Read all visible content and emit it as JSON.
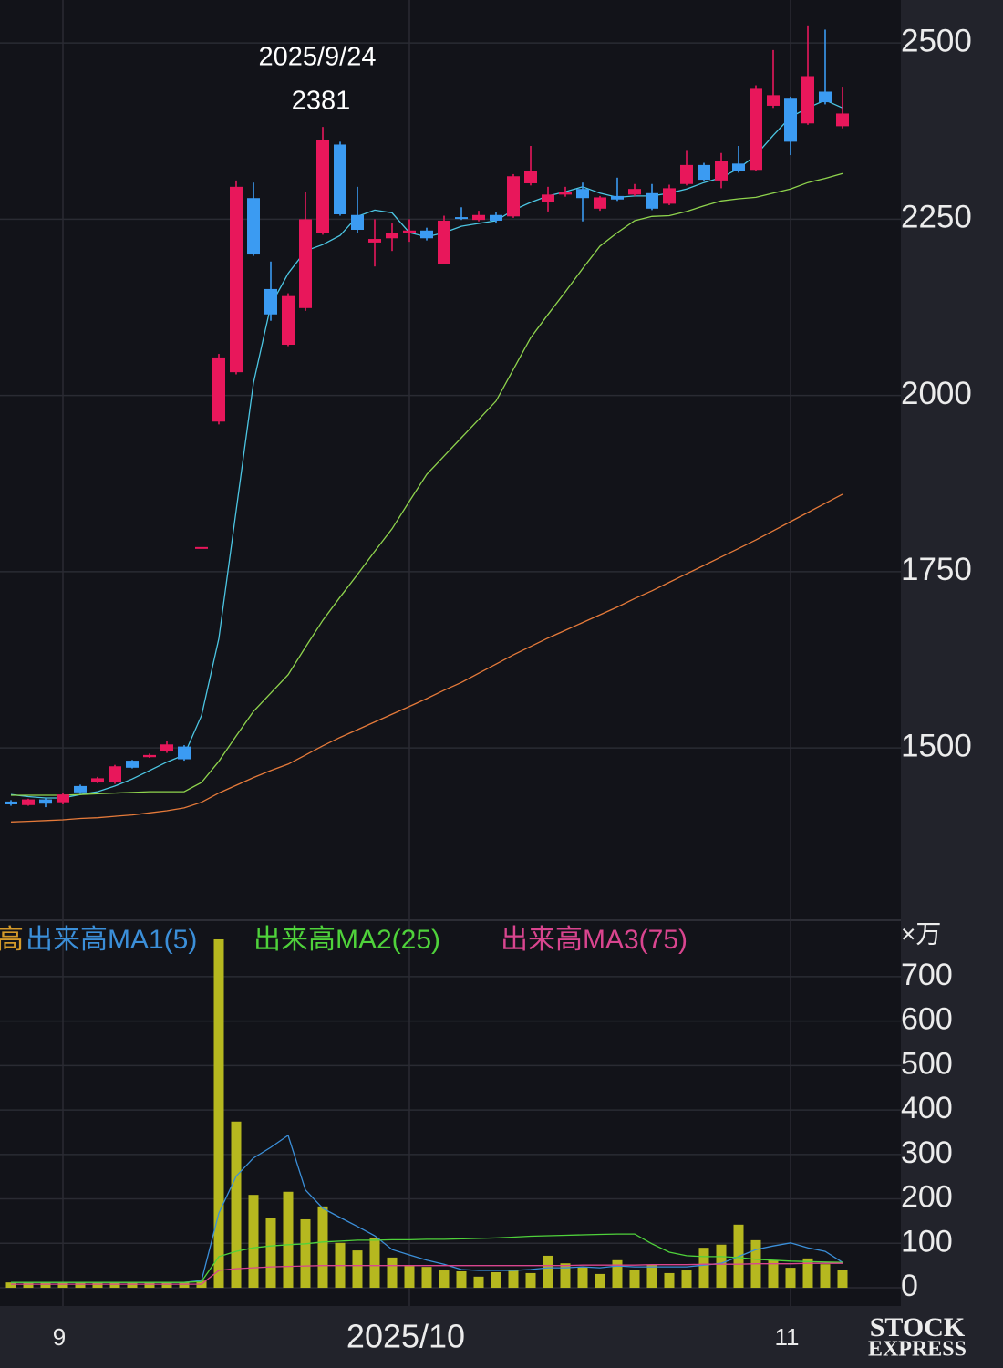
{
  "chart_data": {
    "type": "candlestick",
    "categories": [
      null,
      null,
      null,
      "9",
      null,
      null,
      null,
      null,
      null,
      null,
      null,
      null,
      null,
      null,
      null,
      null,
      null,
      null,
      null,
      null,
      null,
      null,
      null,
      "2025/10",
      null,
      null,
      null,
      null,
      null,
      null,
      null,
      null,
      null,
      null,
      null,
      null,
      null,
      null,
      null,
      null,
      null,
      null,
      null,
      null,
      null,
      "11",
      null,
      null,
      null
    ],
    "open": [
      1424,
      1419,
      1427,
      1423,
      1446,
      1451,
      1451,
      1482,
      1487,
      1495,
      1502,
      1785,
      1963,
      2033,
      2280,
      2151,
      2072,
      2124,
      2231,
      2356,
      2256,
      2217,
      2223,
      2230,
      2234,
      2187,
      2253,
      2249,
      2256,
      2254,
      2301,
      2275,
      2285,
      2293,
      2265,
      2283,
      2285,
      2287,
      2272,
      2300,
      2327,
      2305,
      2329,
      2320,
      2411,
      2421,
      2386,
      2431,
      2382
    ],
    "high": [
      1426,
      1428,
      1429,
      1436,
      1448,
      1459,
      1476,
      1483,
      1492,
      1510,
      1504,
      1785,
      2059,
      2305,
      2302,
      2190,
      2145,
      2289,
      2381,
      2360,
      2296,
      2250,
      2244,
      2250,
      2238,
      2255,
      2267,
      2262,
      2260,
      2314,
      2354,
      2296,
      2296,
      2302,
      2283,
      2309,
      2300,
      2300,
      2299,
      2347,
      2330,
      2344,
      2354,
      2440,
      2490,
      2424,
      2525,
      2519,
      2438
    ],
    "low": [
      1418,
      1418,
      1416,
      1420,
      1435,
      1450,
      1449,
      1471,
      1486,
      1493,
      1482,
      1785,
      1959,
      2030,
      2198,
      2106,
      2070,
      2120,
      2228,
      2255,
      2231,
      2183,
      2205,
      2218,
      2220,
      2186,
      2249,
      2247,
      2244,
      2252,
      2298,
      2261,
      2282,
      2247,
      2262,
      2276,
      2283,
      2263,
      2270,
      2298,
      2304,
      2294,
      2316,
      2318,
      2408,
      2341,
      2384,
      2413,
      2379
    ],
    "close": [
      1420,
      1427,
      1421,
      1434,
      1437,
      1457,
      1474,
      1472,
      1490,
      1505,
      1484,
      1785,
      2054,
      2296,
      2200,
      2115,
      2141,
      2250,
      2363,
      2257,
      2235,
      2222,
      2230,
      2234,
      2223,
      2248,
      2251,
      2256,
      2248,
      2311,
      2319,
      2285,
      2288,
      2280,
      2281,
      2278,
      2293,
      2265,
      2294,
      2327,
      2306,
      2333,
      2319,
      2435,
      2426,
      2360,
      2453,
      2416,
      2400
    ],
    "up_color": "#e8175b",
    "down_color": "#3b9bf2",
    "ma": [
      {
        "color": "#4cc6e3",
        "values": [
          1434,
          1431,
          1429,
          1429,
          1434,
          1438,
          1446,
          1456,
          1468,
          1480,
          1490,
          1546,
          1655,
          1837,
          2018,
          2128,
          2173,
          2205,
          2214,
          2227,
          2254,
          2263,
          2259,
          2231,
          2225,
          2231,
          2240,
          2244,
          2248,
          2263,
          2274,
          2283,
          2289,
          2296,
          2287,
          2281,
          2283,
          2283,
          2287,
          2293,
          2302,
          2309,
          2322,
          2341,
          2369,
          2395,
          2408,
          2419,
          2408
        ]
      },
      {
        "color": "#8fd44d",
        "values": [
          1433,
          1433,
          1433,
          1433,
          1434,
          1435,
          1436,
          1437,
          1438,
          1438,
          1438,
          1451,
          1481,
          1517,
          1552,
          1578,
          1604,
          1643,
          1681,
          1714,
          1746,
          1779,
          1811,
          1850,
          1888,
          1914,
          1940,
          1966,
          1992,
          2037,
          2082,
          2115,
          2147,
          2180,
          2212,
          2231,
          2248,
          2254,
          2255,
          2261,
          2269,
          2276,
          2279,
          2281,
          2287,
          2293,
          2302,
          2308,
          2315
        ]
      },
      {
        "color": "#e57a3a",
        "values": [
          1395,
          1396,
          1397,
          1398,
          1400,
          1401,
          1403,
          1405,
          1408,
          1411,
          1415,
          1423,
          1436,
          1447,
          1458,
          1468,
          1477,
          1490,
          1503,
          1515,
          1526,
          1537,
          1548,
          1559,
          1570,
          1582,
          1593,
          1606,
          1619,
          1632,
          1644,
          1656,
          1667,
          1678,
          1689,
          1700,
          1712,
          1723,
          1735,
          1747,
          1759,
          1771,
          1783,
          1795,
          1808,
          1821,
          1834,
          1847,
          1860
        ]
      }
    ],
    "annotation": {
      "label": "2025/9/24",
      "value": 2381
    },
    "ylim": [
      1257,
      2561
    ],
    "yticks": [
      1500,
      1750,
      2000,
      2250,
      2500
    ],
    "grid": true,
    "volume": {
      "type": "bar",
      "name": "高",
      "color": "#b6b81f",
      "unit_label": "×万",
      "values": [
        12,
        12,
        12,
        12,
        12,
        12,
        12,
        12,
        12,
        12,
        12,
        16,
        784,
        374,
        209,
        156,
        216,
        154,
        183,
        101,
        84,
        113,
        68,
        49,
        47,
        39,
        37,
        25,
        35,
        39,
        33,
        72,
        55,
        47,
        31,
        62,
        41,
        51,
        33,
        39,
        90,
        97,
        142,
        107,
        62,
        45,
        66,
        53,
        41
      ],
      "ylim": [
        -41,
        825
      ],
      "yticks": [
        0,
        100,
        200,
        300,
        400,
        500,
        600,
        700
      ],
      "series": [
        {
          "name": "出来高MA1(5)",
          "color": "#3b8fd9",
          "values": [
            12,
            12,
            12,
            12,
            12,
            12,
            12,
            12,
            12,
            12,
            12,
            16,
            168,
            251,
            292,
            316,
            343,
            220,
            179,
            158,
            138,
            117,
            86,
            74,
            62,
            53,
            41,
            39,
            39,
            39,
            41,
            45,
            45,
            47,
            45,
            49,
            47,
            47,
            47,
            47,
            51,
            55,
            70,
            86,
            94,
            101,
            90,
            82,
            57
          ]
        },
        {
          "name": "出来高MA2(25)",
          "color": "#4fd23b",
          "values": [
            12,
            12,
            12,
            12,
            12,
            12,
            12,
            12,
            12,
            12,
            12,
            14,
            70,
            82,
            90,
            94,
            97,
            99,
            103,
            105,
            107,
            107,
            108,
            108,
            109,
            109,
            110,
            111,
            112,
            114,
            116,
            117,
            118,
            119,
            120,
            121,
            121,
            99,
            80,
            72,
            70,
            70,
            68,
            64,
            62,
            60,
            59,
            58,
            57
          ]
        },
        {
          "name": "出来高MA3(75)",
          "color": "#d9458f",
          "values": [
            8,
            8,
            8,
            8,
            8,
            8,
            8,
            8,
            8,
            8,
            8,
            8,
            39,
            43,
            45,
            47,
            48,
            49,
            50,
            50,
            50,
            50,
            50,
            50,
            50,
            50,
            50,
            50,
            50,
            50,
            50,
            50,
            50,
            51,
            51,
            51,
            51,
            52,
            52,
            52,
            53,
            53,
            53,
            54,
            54,
            54,
            55,
            55,
            55
          ]
        }
      ]
    }
  },
  "watermark": {
    "line1": "STOCK",
    "line2": "EXPRESS"
  }
}
